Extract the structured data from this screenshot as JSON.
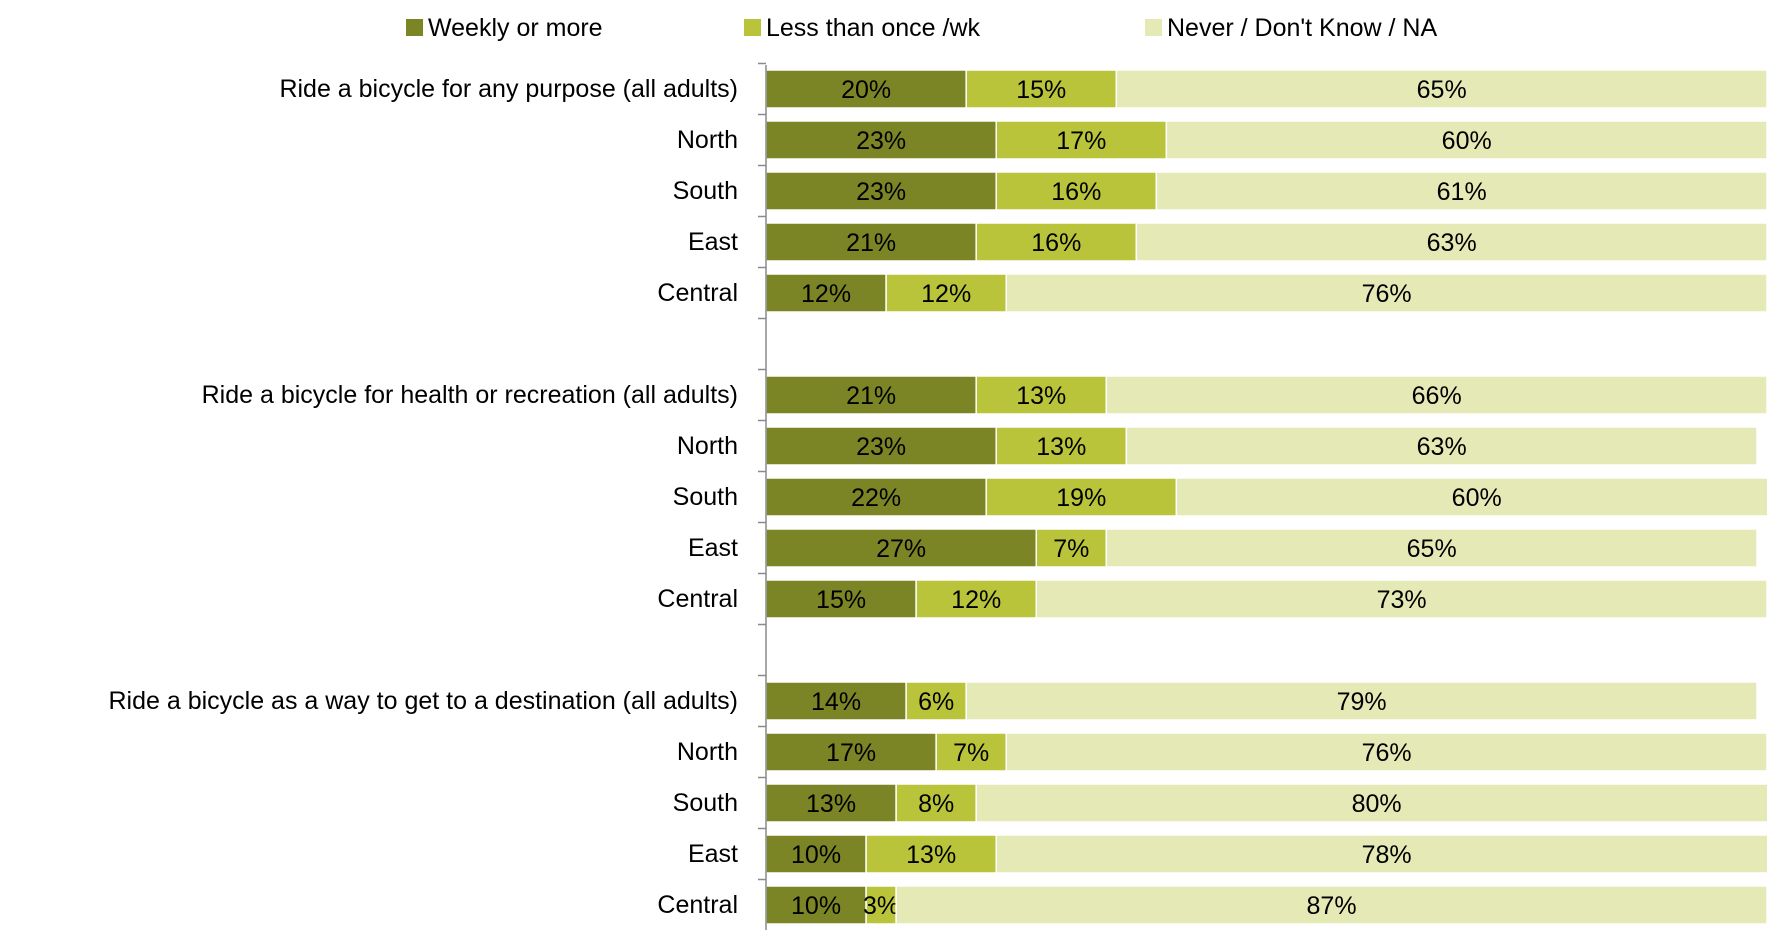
{
  "chart_data": {
    "type": "bar",
    "orientation": "horizontal",
    "stacked": true,
    "percent_stacked": true,
    "legend_position": "top",
    "grid": false,
    "xlim": [
      0,
      100
    ],
    "categories": [
      "Ride a bicycle for any purpose (all adults)",
      "North",
      "South",
      "East",
      "Central",
      "",
      "Ride a bicycle for health or recreation (all adults)",
      "North",
      "South",
      "East",
      "Central",
      "",
      "Ride a bicycle as a way to get to a destination (all adults)",
      "North",
      "South",
      "East",
      "Central"
    ],
    "series": [
      {
        "name": "Weekly or more",
        "color": "#7b8525",
        "values": [
          20,
          23,
          23,
          21,
          12,
          null,
          21,
          23,
          22,
          27,
          15,
          null,
          14,
          17,
          13,
          10,
          10
        ],
        "labels": [
          "20%",
          "23%",
          "23%",
          "21%",
          "12%",
          "",
          "21%",
          "23%",
          "22%",
          "27%",
          "15%",
          "",
          "14%",
          "17%",
          "13%",
          "10%",
          "10%"
        ]
      },
      {
        "name": "Less than once /wk",
        "color": "#b9c43a",
        "values": [
          15,
          17,
          16,
          16,
          12,
          null,
          13,
          13,
          19,
          7,
          12,
          null,
          6,
          7,
          8,
          13,
          3
        ],
        "labels": [
          "15%",
          "17%",
          "16%",
          "16%",
          "12%",
          "",
          "13%",
          "13%",
          "19%",
          "7%",
          "12%",
          "",
          "6%",
          "7%",
          "8%",
          "13%",
          "3%"
        ]
      },
      {
        "name": "Never / Don't Know / NA",
        "color": "#e4e9b5",
        "values": [
          65,
          60,
          61,
          63,
          76,
          null,
          66,
          63,
          60,
          65,
          73,
          null,
          79,
          76,
          80,
          78,
          87
        ],
        "labels": [
          "65%",
          "60%",
          "61%",
          "63%",
          "76%",
          "",
          "66%",
          "63%",
          "60%",
          "65%",
          "73%",
          "",
          "79%",
          "76%",
          "80%",
          "78%",
          "87%"
        ]
      }
    ]
  }
}
